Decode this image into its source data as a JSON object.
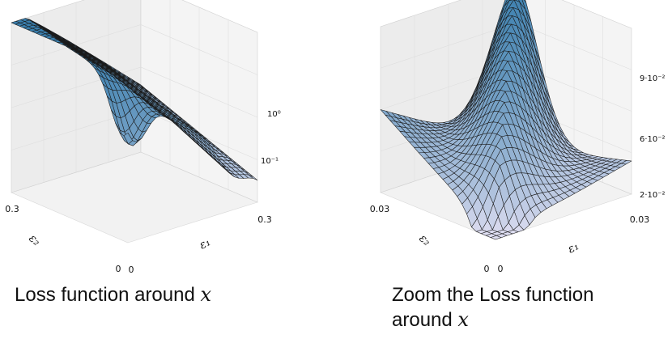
{
  "captions": {
    "left": {
      "text": "Loss function around ",
      "var": "x"
    },
    "right": {
      "line1": "Zoom the Loss function",
      "line2": "around ",
      "var": "x"
    }
  },
  "chart_data": [
    {
      "type": "surface",
      "x_axis": {
        "label": "ε₁",
        "tick_labels": [
          "0",
          "0.3"
        ]
      },
      "y_axis": {
        "label": "ε₂",
        "tick_labels": [
          "0",
          "0.3"
        ]
      },
      "z_axis": {
        "scale": "log",
        "tick_labels": [
          "10⁰",
          "10⁻¹"
        ]
      },
      "colormap": {
        "low": "#dcdcf0",
        "high": "#3a7fae"
      },
      "grid": true
    },
    {
      "type": "surface",
      "x_axis": {
        "label": "ε₁",
        "tick_labels": [
          "0",
          "0.03"
        ]
      },
      "y_axis": {
        "label": "ε₂",
        "tick_labels": [
          "0",
          "0.03"
        ]
      },
      "z_axis": {
        "scale": "linear",
        "tick_labels": [
          "9·10⁻²",
          "6·10⁻²",
          "2·10⁻²"
        ]
      },
      "colormap": {
        "low": "#dcdcf0",
        "high": "#3a7fae"
      },
      "grid": true
    }
  ]
}
